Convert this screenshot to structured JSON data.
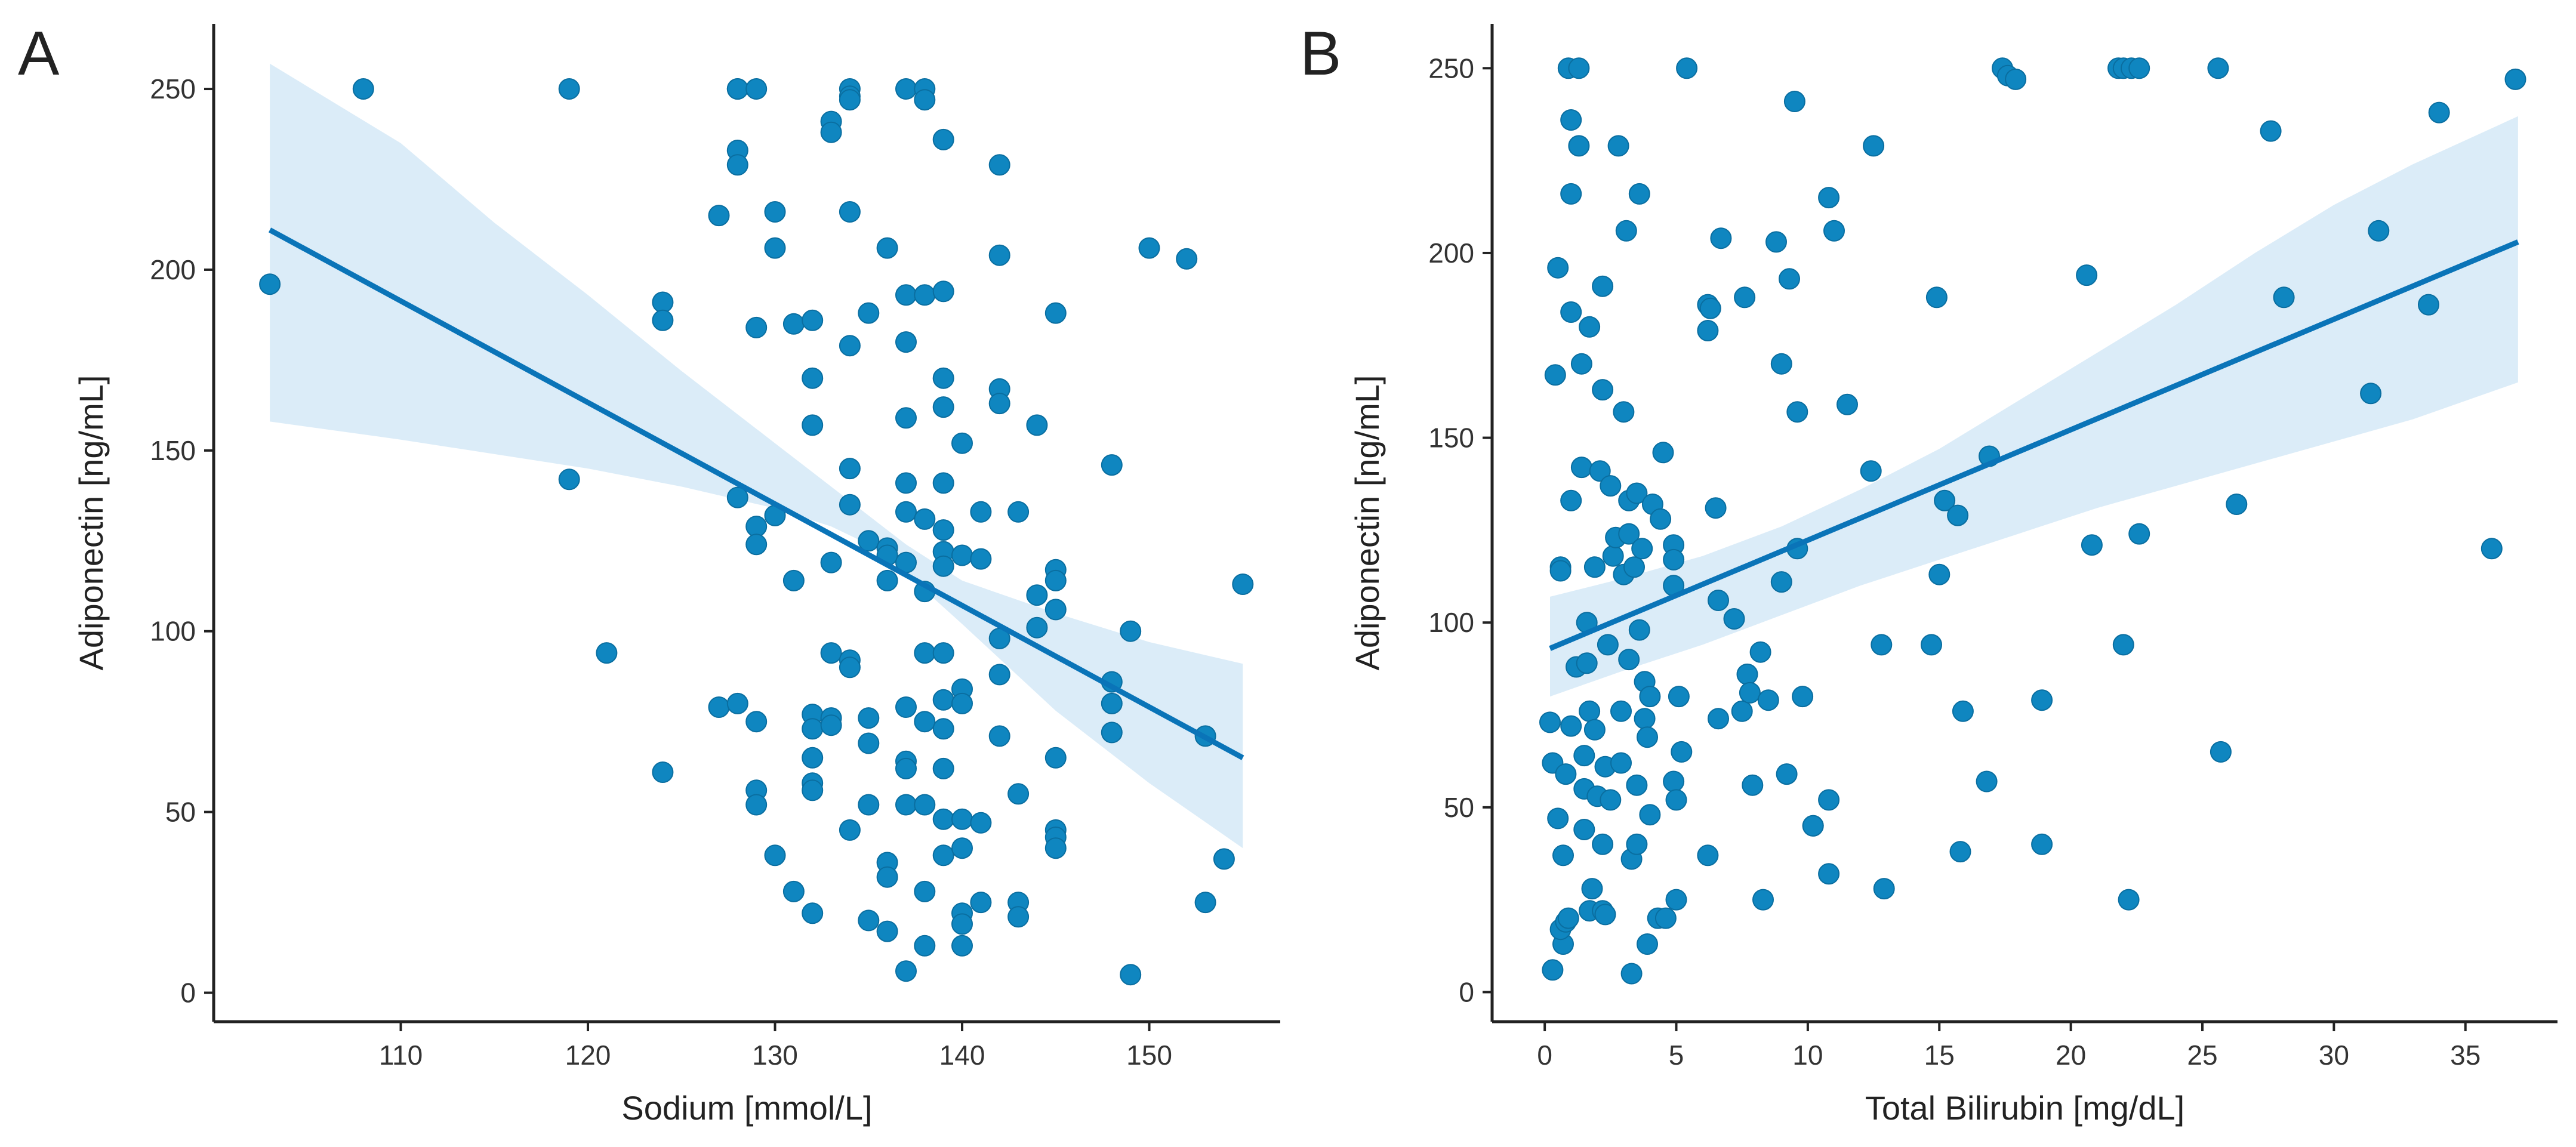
{
  "chart_data": [
    {
      "type": "scatter",
      "panel_label": "A",
      "xlabel": "Sodium [mmol/L]",
      "ylabel": "Adiponectin [ng/mL]",
      "xlim": [
        100,
        157
      ],
      "ylim": [
        -8,
        268
      ],
      "xticks": [
        110,
        120,
        130,
        140,
        150
      ],
      "yticks": [
        0,
        50,
        100,
        150,
        200,
        250
      ],
      "regression": {
        "x": [
          103,
          155
        ],
        "y": [
          211,
          65
        ]
      },
      "ci_band": {
        "x": [
          103,
          110,
          115,
          120,
          125,
          130,
          133,
          135,
          137,
          140,
          145,
          150,
          155
        ],
        "upper": [
          257,
          235,
          213,
          193,
          172,
          152,
          140,
          132,
          124,
          114,
          105,
          97,
          91
        ],
        "lower": [
          158,
          153,
          149,
          145,
          140,
          134,
          129,
          124,
          116,
          102,
          78,
          58,
          40
        ]
      },
      "points": [
        [
          103,
          196
        ],
        [
          108,
          250
        ],
        [
          119,
          250
        ],
        [
          119,
          142
        ],
        [
          121,
          94
        ],
        [
          124,
          191
        ],
        [
          124,
          186
        ],
        [
          124,
          61
        ],
        [
          127,
          215
        ],
        [
          127,
          79
        ],
        [
          128,
          250
        ],
        [
          128,
          250
        ],
        [
          128,
          233
        ],
        [
          128,
          229
        ],
        [
          128,
          137
        ],
        [
          128,
          80
        ],
        [
          129,
          250
        ],
        [
          129,
          184
        ],
        [
          129,
          129
        ],
        [
          129,
          124
        ],
        [
          129,
          75
        ],
        [
          129,
          56
        ],
        [
          129,
          52
        ],
        [
          130,
          216
        ],
        [
          130,
          206
        ],
        [
          130,
          132
        ],
        [
          130,
          38
        ],
        [
          131,
          185
        ],
        [
          131,
          114
        ],
        [
          131,
          28
        ],
        [
          132,
          186
        ],
        [
          132,
          170
        ],
        [
          132,
          157
        ],
        [
          132,
          77
        ],
        [
          132,
          73
        ],
        [
          132,
          65
        ],
        [
          132,
          58
        ],
        [
          132,
          56
        ],
        [
          132,
          22
        ],
        [
          133,
          241
        ],
        [
          133,
          238
        ],
        [
          133,
          119
        ],
        [
          133,
          94
        ],
        [
          133,
          76
        ],
        [
          133,
          74
        ],
        [
          134,
          250
        ],
        [
          134,
          248
        ],
        [
          134,
          247
        ],
        [
          134,
          216
        ],
        [
          134,
          179
        ],
        [
          134,
          145
        ],
        [
          134,
          135
        ],
        [
          134,
          92
        ],
        [
          134,
          90
        ],
        [
          134,
          45
        ],
        [
          135,
          188
        ],
        [
          135,
          125
        ],
        [
          135,
          76
        ],
        [
          135,
          69
        ],
        [
          135,
          52
        ],
        [
          135,
          20
        ],
        [
          136,
          206
        ],
        [
          136,
          123
        ],
        [
          136,
          114
        ],
        [
          136,
          121
        ],
        [
          136,
          36
        ],
        [
          136,
          32
        ],
        [
          136,
          17
        ],
        [
          137,
          250
        ],
        [
          137,
          193
        ],
        [
          137,
          180
        ],
        [
          137,
          159
        ],
        [
          137,
          141
        ],
        [
          137,
          133
        ],
        [
          137,
          119
        ],
        [
          137,
          79
        ],
        [
          137,
          64
        ],
        [
          137,
          62
        ],
        [
          137,
          52
        ],
        [
          137,
          6
        ],
        [
          138,
          250
        ],
        [
          138,
          247
        ],
        [
          138,
          193
        ],
        [
          138,
          131
        ],
        [
          138,
          111
        ],
        [
          138,
          94
        ],
        [
          138,
          75
        ],
        [
          138,
          52
        ],
        [
          138,
          28
        ],
        [
          138,
          13
        ],
        [
          139,
          236
        ],
        [
          139,
          194
        ],
        [
          139,
          170
        ],
        [
          139,
          162
        ],
        [
          139,
          141
        ],
        [
          139,
          128
        ],
        [
          139,
          122
        ],
        [
          139,
          118
        ],
        [
          139,
          94
        ],
        [
          139,
          81
        ],
        [
          139,
          73
        ],
        [
          139,
          62
        ],
        [
          139,
          48
        ],
        [
          139,
          38
        ],
        [
          140,
          152
        ],
        [
          140,
          121
        ],
        [
          140,
          84
        ],
        [
          140,
          80
        ],
        [
          140,
          48
        ],
        [
          140,
          40
        ],
        [
          140,
          22
        ],
        [
          140,
          19
        ],
        [
          140,
          13
        ],
        [
          141,
          133
        ],
        [
          141,
          120
        ],
        [
          141,
          47
        ],
        [
          141,
          25
        ],
        [
          142,
          229
        ],
        [
          142,
          204
        ],
        [
          142,
          167
        ],
        [
          142,
          163
        ],
        [
          142,
          98
        ],
        [
          142,
          88
        ],
        [
          142,
          71
        ],
        [
          143,
          133
        ],
        [
          143,
          55
        ],
        [
          143,
          25
        ],
        [
          143,
          21
        ],
        [
          144,
          157
        ],
        [
          144,
          110
        ],
        [
          144,
          101
        ],
        [
          145,
          188
        ],
        [
          145,
          117
        ],
        [
          145,
          114
        ],
        [
          145,
          106
        ],
        [
          145,
          65
        ],
        [
          145,
          45
        ],
        [
          145,
          43
        ],
        [
          145,
          40
        ],
        [
          148,
          146
        ],
        [
          148,
          86
        ],
        [
          148,
          80
        ],
        [
          148,
          72
        ],
        [
          149,
          100
        ],
        [
          149,
          5
        ],
        [
          150,
          206
        ],
        [
          152,
          203
        ],
        [
          153,
          71
        ],
        [
          153,
          25
        ],
        [
          154,
          37
        ],
        [
          155,
          113
        ]
      ]
    },
    {
      "type": "scatter",
      "panel_label": "B",
      "xlabel": "Total Bilirubin [mg/dL]",
      "ylabel": "Adiponectin [ng/mL]",
      "xlim": [
        -2,
        38.5
      ],
      "ylim": [
        -8,
        262
      ],
      "xticks": [
        0,
        5,
        10,
        15,
        20,
        25,
        30,
        35
      ],
      "yticks": [
        0,
        50,
        100,
        150,
        200,
        250
      ],
      "regression": {
        "x": [
          0.2,
          37
        ],
        "y": [
          93,
          203
        ]
      },
      "ci_band": {
        "x": [
          0.2,
          3,
          6,
          9,
          12,
          15,
          18,
          21,
          24,
          27,
          30,
          33,
          37
        ],
        "upper": [
          107,
          112,
          118,
          126,
          136,
          147,
          160,
          173,
          186,
          200,
          213,
          224,
          237
        ],
        "lower": [
          80,
          87,
          94,
          102,
          110,
          117,
          124,
          131,
          137,
          143,
          149,
          155,
          165
        ]
      },
      "points": [
        [
          0.2,
          73
        ],
        [
          0.3,
          6
        ],
        [
          0.3,
          62
        ],
        [
          0.4,
          167
        ],
        [
          0.5,
          196
        ],
        [
          0.5,
          47
        ],
        [
          0.6,
          115
        ],
        [
          0.6,
          114
        ],
        [
          0.7,
          37
        ],
        [
          0.7,
          13
        ],
        [
          0.6,
          17
        ],
        [
          0.8,
          19
        ],
        [
          0.8,
          59
        ],
        [
          0.9,
          20
        ],
        [
          0.9,
          250
        ],
        [
          1.0,
          236
        ],
        [
          1.0,
          216
        ],
        [
          1.0,
          184
        ],
        [
          1.0,
          133
        ],
        [
          1.0,
          72
        ],
        [
          1.2,
          88
        ],
        [
          1.3,
          250
        ],
        [
          1.3,
          229
        ],
        [
          1.4,
          170
        ],
        [
          1.4,
          142
        ],
        [
          1.5,
          44
        ],
        [
          1.5,
          64
        ],
        [
          1.5,
          55
        ],
        [
          1.6,
          100
        ],
        [
          1.6,
          89
        ],
        [
          1.7,
          180
        ],
        [
          1.7,
          76
        ],
        [
          1.7,
          22
        ],
        [
          1.8,
          28
        ],
        [
          1.9,
          115
        ],
        [
          1.9,
          71
        ],
        [
          2.0,
          53
        ],
        [
          2.1,
          141
        ],
        [
          2.2,
          191
        ],
        [
          2.2,
          163
        ],
        [
          2.2,
          40
        ],
        [
          2.2,
          22
        ],
        [
          2.3,
          61
        ],
        [
          2.3,
          21
        ],
        [
          2.4,
          94
        ],
        [
          2.5,
          137
        ],
        [
          2.5,
          52
        ],
        [
          2.6,
          118
        ],
        [
          2.7,
          123
        ],
        [
          2.8,
          229
        ],
        [
          2.9,
          76
        ],
        [
          2.9,
          62
        ],
        [
          3.0,
          157
        ],
        [
          3.0,
          113
        ],
        [
          3.1,
          206
        ],
        [
          3.2,
          133
        ],
        [
          3.2,
          124
        ],
        [
          3.2,
          90
        ],
        [
          3.3,
          5
        ],
        [
          3.3,
          36
        ],
        [
          3.4,
          115
        ],
        [
          3.5,
          135
        ],
        [
          3.5,
          56
        ],
        [
          3.5,
          40
        ],
        [
          3.6,
          216
        ],
        [
          3.6,
          98
        ],
        [
          3.7,
          120
        ],
        [
          3.8,
          74
        ],
        [
          3.8,
          84
        ],
        [
          3.9,
          69
        ],
        [
          3.9,
          13
        ],
        [
          4.0,
          80
        ],
        [
          4.0,
          48
        ],
        [
          4.1,
          132
        ],
        [
          4.3,
          20
        ],
        [
          4.4,
          128
        ],
        [
          4.5,
          146
        ],
        [
          4.6,
          20
        ],
        [
          4.9,
          121
        ],
        [
          4.9,
          117
        ],
        [
          4.9,
          110
        ],
        [
          4.9,
          57
        ],
        [
          5.0,
          52
        ],
        [
          5.0,
          25
        ],
        [
          5.1,
          80
        ],
        [
          5.2,
          65
        ],
        [
          5.4,
          250
        ],
        [
          6.2,
          186
        ],
        [
          6.2,
          179
        ],
        [
          6.2,
          37
        ],
        [
          6.3,
          185
        ],
        [
          6.5,
          131
        ],
        [
          6.6,
          74
        ],
        [
          6.6,
          106
        ],
        [
          6.7,
          204
        ],
        [
          7.2,
          101
        ],
        [
          7.5,
          76
        ],
        [
          7.6,
          188
        ],
        [
          7.7,
          86
        ],
        [
          7.8,
          81
        ],
        [
          7.9,
          56
        ],
        [
          8.2,
          92
        ],
        [
          8.3,
          25
        ],
        [
          8.5,
          79
        ],
        [
          8.8,
          203
        ],
        [
          9.0,
          170
        ],
        [
          9.0,
          111
        ],
        [
          9.2,
          59
        ],
        [
          9.3,
          193
        ],
        [
          9.5,
          241
        ],
        [
          9.6,
          157
        ],
        [
          9.6,
          120
        ],
        [
          9.8,
          80
        ],
        [
          10.2,
          45
        ],
        [
          10.2,
          45
        ],
        [
          10.8,
          215
        ],
        [
          10.8,
          52
        ],
        [
          10.8,
          32
        ],
        [
          11.0,
          206
        ],
        [
          11.5,
          159
        ],
        [
          12.4,
          141
        ],
        [
          12.5,
          229
        ],
        [
          12.8,
          94
        ],
        [
          12.9,
          28
        ],
        [
          14.7,
          94
        ],
        [
          14.9,
          188
        ],
        [
          15.0,
          113
        ],
        [
          15.2,
          133
        ],
        [
          15.7,
          129
        ],
        [
          15.8,
          38
        ],
        [
          15.9,
          76
        ],
        [
          16.8,
          57
        ],
        [
          16.9,
          145
        ],
        [
          17.4,
          250
        ],
        [
          17.6,
          248
        ],
        [
          17.9,
          247
        ],
        [
          18.9,
          79
        ],
        [
          18.9,
          40
        ],
        [
          20.6,
          194
        ],
        [
          20.8,
          121
        ],
        [
          21.8,
          250
        ],
        [
          22.0,
          250
        ],
        [
          22.0,
          94
        ],
        [
          22.2,
          25
        ],
        [
          22.3,
          250
        ],
        [
          22.6,
          124
        ],
        [
          22.6,
          250
        ],
        [
          25.6,
          250
        ],
        [
          25.7,
          65
        ],
        [
          26.3,
          132
        ],
        [
          27.6,
          233
        ],
        [
          28.1,
          188
        ],
        [
          31.4,
          162
        ],
        [
          31.7,
          206
        ],
        [
          33.6,
          186
        ],
        [
          34.0,
          238
        ],
        [
          36.0,
          120
        ],
        [
          36.9,
          247
        ]
      ]
    }
  ]
}
